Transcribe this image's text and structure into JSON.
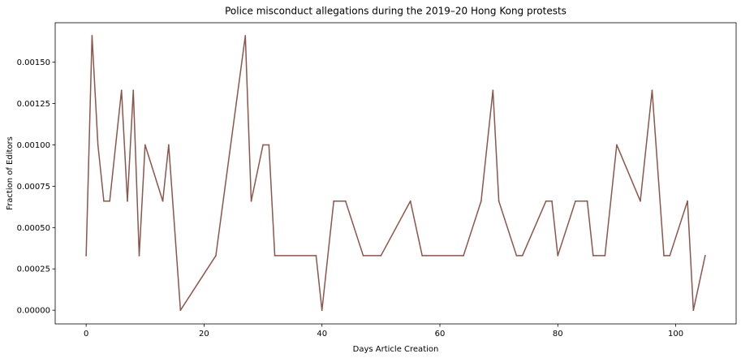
{
  "chart_data": {
    "type": "line",
    "title": "Police misconduct allegations during the 2019–20 Hong Kong protests",
    "xlabel": "Days Article Creation",
    "ylabel": "Fraction of Editors",
    "xlim": [
      -5.25,
      110.25
    ],
    "ylim": [
      -8.28e-05,
      0.0017388
    ],
    "x_ticks": [
      0,
      20,
      40,
      60,
      80,
      100
    ],
    "x_tick_labels": [
      "0",
      "20",
      "40",
      "60",
      "80",
      "100"
    ],
    "y_ticks": [
      0,
      0.00025,
      0.0005,
      0.00075,
      0.001,
      0.00125,
      0.0015
    ],
    "y_tick_labels": [
      "0.00000",
      "0.00025",
      "0.00050",
      "0.00075",
      "0.00100",
      "0.00125",
      "0.00150"
    ],
    "grid": false,
    "colors": {
      "line": "#8c564b",
      "axes": "#000000"
    },
    "series": [
      {
        "x": [
          0,
          1,
          2,
          3,
          4,
          6,
          7,
          8,
          9,
          10,
          13,
          14,
          16,
          22,
          27,
          28,
          30,
          31,
          32,
          39,
          40,
          42,
          44,
          47,
          50,
          55,
          57,
          64,
          67,
          69,
          70,
          73,
          74,
          78,
          79,
          80,
          83,
          85,
          86,
          88,
          90,
          94,
          96,
          98,
          99,
          102,
          103,
          105
        ],
        "y": [
          0.00033,
          0.00166,
          0.001,
          0.00066,
          0.00066,
          0.00133,
          0.00066,
          0.00133,
          0.00033,
          0.001,
          0.00066,
          0.001,
          0.0,
          0.00033,
          0.00166,
          0.00066,
          0.001,
          0.001,
          0.00033,
          0.00033,
          0.0,
          0.00066,
          0.00066,
          0.00033,
          0.00033,
          0.00066,
          0.00033,
          0.00033,
          0.00066,
          0.00133,
          0.00066,
          0.00033,
          0.00033,
          0.00066,
          0.00066,
          0.00033,
          0.00066,
          0.00066,
          0.00033,
          0.00033,
          0.001,
          0.00066,
          0.00133,
          0.00033,
          0.00033,
          0.00066,
          0.0,
          0.00033
        ]
      }
    ]
  }
}
